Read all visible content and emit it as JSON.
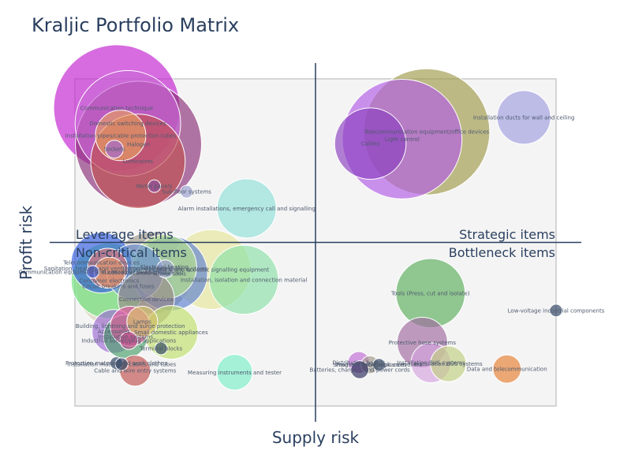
{
  "chart_data": {
    "type": "scatter",
    "title": "Kraljic Portfolio Matrix",
    "xlabel": "Supply risk",
    "ylabel": "Profit risk",
    "xlim": [
      0,
      100
    ],
    "ylim": [
      0,
      100
    ],
    "center": [
      50,
      50
    ],
    "quadrants": {
      "top_left": "Leverage items",
      "top_right": "Strategic items",
      "bottom_left": "Non-critical items",
      "bottom_right": "Bottleneck items"
    },
    "points": [
      {
        "label": "Communication technique",
        "x": 8.7,
        "y": 91.1,
        "size": 100,
        "color": "#c11dcf"
      },
      {
        "label": "Domestic switching devices",
        "x": 11.0,
        "y": 86.4,
        "size": 70,
        "color": "#c96ad6"
      },
      {
        "label": "Installation pipes/cable protection tubes",
        "x": 9.5,
        "y": 82.7,
        "size": 16,
        "color": "#e6a060"
      },
      {
        "label": "Halogen",
        "x": 13.2,
        "y": 80.0,
        "size": 100,
        "color": "#8a2e78"
      },
      {
        "label": "Sockets",
        "x": 8.2,
        "y": 78.5,
        "size": 2,
        "color": "#9c6ad6"
      },
      {
        "label": "Luminaires",
        "x": 13.1,
        "y": 74.8,
        "size": 56,
        "color": "#c0504d"
      },
      {
        "label": "Meter panels",
        "x": 16.5,
        "y": 67.2,
        "size": 1,
        "color": "#8a4e9e"
      },
      {
        "label": "Sub-floor systems",
        "x": 23.2,
        "y": 65.5,
        "size": 1,
        "color": "#9aa0d0"
      },
      {
        "label": "Alarm installations, emergency call and signalling",
        "x": 35.7,
        "y": 60.4,
        "size": 22,
        "color": "#8fe0d8"
      },
      {
        "label": "Installation ducts for wall and ceiling",
        "x": 93.3,
        "y": 88.2,
        "size": 18,
        "color": "#9f9ee0"
      },
      {
        "label": "Telecommunication equipment/office devices",
        "x": 73.1,
        "y": 83.8,
        "size": 100,
        "color": "#9e9a4a"
      },
      {
        "label": "Light control",
        "x": 68.0,
        "y": 81.6,
        "size": 90,
        "color": "#b25ae6"
      },
      {
        "label": "Cables",
        "x": 61.4,
        "y": 80.2,
        "size": 32,
        "color": "#8a3fc0"
      },
      {
        "label": "Telecommunication devices",
        "x": 5.5,
        "y": 43.8,
        "size": 23,
        "color": "#2f5be0"
      },
      {
        "label": "Electrical heating",
        "x": 18.6,
        "y": 42.5,
        "size": 26,
        "color": "#b7e38a"
      },
      {
        "label": "Sanitation, heating and ventilation appliances",
        "x": 6.8,
        "y": 42.1,
        "size": 10,
        "color": "#e57373"
      },
      {
        "label": "Slotted wall and cable systems",
        "x": 18.8,
        "y": 41.9,
        "size": 2,
        "color": "#9aa0d0"
      },
      {
        "label": "Optical and acoustic signalling equipment",
        "x": 28.3,
        "y": 41.7,
        "size": 40,
        "color": "#e6e69a"
      },
      {
        "label": "Communication equipment and consumer electronics",
        "x": 3.7,
        "y": 41.0,
        "size": 1,
        "color": "#2f5be0"
      },
      {
        "label": "Modular devices",
        "x": 12.5,
        "y": 40.9,
        "size": 20,
        "color": "#6a8fd6"
      },
      {
        "label": "Power tools",
        "x": 19.8,
        "y": 40.5,
        "size": 35,
        "color": "#5a7fcf"
      },
      {
        "label": "Fuses",
        "x": 7.2,
        "y": 40.8,
        "size": 6,
        "color": "#e59a6a"
      },
      {
        "label": "Consumer electronics",
        "x": 7.1,
        "y": 38.3,
        "size": 36,
        "color": "#6ae07a"
      },
      {
        "label": "Installation, isolation and connection material",
        "x": 35.1,
        "y": 38.6,
        "size": 30,
        "color": "#8ae0a8"
      },
      {
        "label": "Circuit breakers and fuses",
        "x": 9.0,
        "y": 36.6,
        "size": 45,
        "color": "#d9d2b8"
      },
      {
        "label": "Household appliances",
        "x": 16.0,
        "y": 40.7,
        "size": 42,
        "color": "#a09a8a"
      },
      {
        "label": "Connection devices",
        "x": 14.8,
        "y": 32.7,
        "size": 20,
        "color": "#9a8a8a"
      },
      {
        "label": "Tools (Press, cut and isolate)",
        "x": 73.9,
        "y": 34.5,
        "size": 30,
        "color": "#5aad5a"
      },
      {
        "label": "Low-voltage industrial components",
        "x": 100.0,
        "y": 29.2,
        "size": 1,
        "color": "#2a3f5f"
      },
      {
        "label": "Lamps",
        "x": 14.0,
        "y": 25.8,
        "size": 6,
        "color": "#d9c36a"
      },
      {
        "label": "Building, lightning and surge protection",
        "x": 11.5,
        "y": 24.4,
        "size": 10,
        "color": "#e65aa0"
      },
      {
        "label": "Small domestic appliances",
        "x": 20.0,
        "y": 22.5,
        "size": 18,
        "color": "#c0e06a"
      },
      {
        "label": "Accessories",
        "x": 8.1,
        "y": 22.8,
        "size": 12,
        "color": "#9c6ad6"
      },
      {
        "label": "Installation systems",
        "x": 10.5,
        "y": 21.2,
        "size": 12,
        "color": "#4a9e6a"
      },
      {
        "label": "Industrial socket/plug applications",
        "x": 11.2,
        "y": 20.0,
        "size": 2,
        "color": "#c0508a"
      },
      {
        "label": "Terminal blocks",
        "x": 17.9,
        "y": 17.6,
        "size": 1,
        "color": "#2a3f5f"
      },
      {
        "label": "Protective hose systems",
        "x": 72.2,
        "y": 19.4,
        "size": 16,
        "color": "#a06aa0"
      },
      {
        "label": "Protection material and work clothes",
        "x": 8.6,
        "y": 13.1,
        "size": 1,
        "color": "#2a3f5f"
      },
      {
        "label": "Installation materials, cables and tubes",
        "x": 9.7,
        "y": 12.8,
        "size": 1,
        "color": "#2a3f5f"
      },
      {
        "label": "Cable and wire entry systems",
        "x": 12.5,
        "y": 10.8,
        "size": 6,
        "color": "#c0504d"
      },
      {
        "label": "Measuring instruments and tester",
        "x": 33.2,
        "y": 10.3,
        "size": 8,
        "color": "#7af0c8"
      },
      {
        "label": "Distribution boards",
        "x": 59.0,
        "y": 13.3,
        "size": 3,
        "color": "#c06ad6"
      },
      {
        "label": "Small domestic appliances",
        "x": 61.3,
        "y": 12.6,
        "size": 2,
        "color": "#a09a8a"
      },
      {
        "label": "Programmable logic controllers",
        "x": 63.2,
        "y": 12.6,
        "size": 1,
        "color": "#2a3f5f"
      },
      {
        "label": "Batteries, chargers and power cords",
        "x": 59.2,
        "y": 11.1,
        "size": 2,
        "color": "#2a2a5a"
      },
      {
        "label": "Installation BUS systems",
        "x": 74.0,
        "y": 13.2,
        "size": 10,
        "color": "#d5a3e0"
      },
      {
        "label": "Installation BUS systems",
        "x": 77.6,
        "y": 12.9,
        "size": 8,
        "color": "#c0d080"
      },
      {
        "label": "Data and telecommunication",
        "x": 89.8,
        "y": 11.3,
        "size": 5,
        "color": "#e67e2f"
      }
    ]
  }
}
